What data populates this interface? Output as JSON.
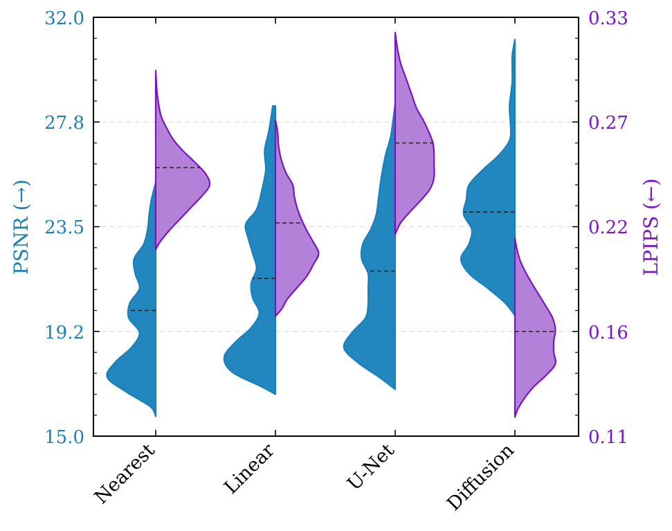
{
  "chart_data": {
    "type": "split-violin",
    "categories": [
      "Nearest",
      "Linear",
      "U-Net",
      "Diffusion"
    ],
    "left_axis": {
      "label": "PSNR (→)",
      "range": [
        15.0,
        32.0
      ],
      "ticks": [
        "15.0",
        "19.2",
        "23.5",
        "27.8",
        "32.0"
      ],
      "color": "#1b7fb8"
    },
    "right_axis": {
      "label": "LPIPS (←)",
      "range": [
        0.11,
        0.33
      ],
      "ticks": [
        "0.11",
        "0.16",
        "0.22",
        "0.27",
        "0.33"
      ],
      "color": "#7b14c0"
    },
    "grid": "dashed horizontal at inner ticks",
    "series": [
      {
        "name": "PSNR",
        "side": "left",
        "fill": "#2287bf",
        "stroke": "#1b7fb8",
        "medians": [
          20.1,
          21.4,
          21.7,
          24.1
        ],
        "violins": [
          {
            "min": 15.8,
            "max": 25.3,
            "profile": [
              [
                15.8,
                0
              ],
              [
                16.2,
                0.1
              ],
              [
                16.8,
                0.55
              ],
              [
                17.4,
                0.9
              ],
              [
                18.0,
                0.75
              ],
              [
                18.6,
                0.45
              ],
              [
                19.2,
                0.3
              ],
              [
                19.8,
                0.5
              ],
              [
                20.4,
                0.48
              ],
              [
                21.0,
                0.3
              ],
              [
                21.6,
                0.38
              ],
              [
                22.2,
                0.4
              ],
              [
                22.8,
                0.22
              ],
              [
                23.4,
                0.15
              ],
              [
                24.0,
                0.12
              ],
              [
                24.6,
                0.08
              ],
              [
                25.3,
                0
              ]
            ]
          },
          {
            "min": 16.7,
            "max": 28.4,
            "profile": [
              [
                16.7,
                0
              ],
              [
                17.0,
                0.25
              ],
              [
                17.6,
                0.8
              ],
              [
                18.2,
                0.95
              ],
              [
                18.8,
                0.75
              ],
              [
                19.4,
                0.45
              ],
              [
                20.0,
                0.3
              ],
              [
                20.6,
                0.42
              ],
              [
                21.2,
                0.45
              ],
              [
                21.8,
                0.35
              ],
              [
                22.4,
                0.42
              ],
              [
                23.0,
                0.5
              ],
              [
                23.6,
                0.55
              ],
              [
                24.2,
                0.35
              ],
              [
                25.0,
                0.25
              ],
              [
                25.8,
                0.18
              ],
              [
                26.6,
                0.2
              ],
              [
                27.4,
                0.12
              ],
              [
                28.4,
                0.05
              ]
            ]
          },
          {
            "min": 16.9,
            "max": 28.5,
            "profile": [
              [
                16.9,
                0
              ],
              [
                17.4,
                0.3
              ],
              [
                18.0,
                0.7
              ],
              [
                18.6,
                0.95
              ],
              [
                19.2,
                0.8
              ],
              [
                19.8,
                0.55
              ],
              [
                20.4,
                0.5
              ],
              [
                21.0,
                0.5
              ],
              [
                21.6,
                0.5
              ],
              [
                22.2,
                0.62
              ],
              [
                22.8,
                0.6
              ],
              [
                23.4,
                0.45
              ],
              [
                24.0,
                0.35
              ],
              [
                24.8,
                0.3
              ],
              [
                25.6,
                0.25
              ],
              [
                26.4,
                0.18
              ],
              [
                27.2,
                0.08
              ],
              [
                28.5,
                0
              ]
            ]
          },
          {
            "min": 19.9,
            "max": 31.1,
            "profile": [
              [
                19.9,
                0
              ],
              [
                20.4,
                0.18
              ],
              [
                21.0,
                0.5
              ],
              [
                21.6,
                0.85
              ],
              [
                22.2,
                1.0
              ],
              [
                22.8,
                0.85
              ],
              [
                23.4,
                0.8
              ],
              [
                24.0,
                0.95
              ],
              [
                24.6,
                0.9
              ],
              [
                25.2,
                0.85
              ],
              [
                25.8,
                0.6
              ],
              [
                26.4,
                0.3
              ],
              [
                27.0,
                0.1
              ],
              [
                27.6,
                0.08
              ],
              [
                28.4,
                0.1
              ],
              [
                29.4,
                0.05
              ],
              [
                30.4,
                0.05
              ],
              [
                31.1,
                0
              ]
            ]
          }
        ]
      },
      {
        "name": "LPIPS",
        "side": "right",
        "fill": "#b07ad6",
        "stroke": "#7b14c0",
        "medians": [
          0.251,
          0.222,
          0.264,
          0.165
        ],
        "violins": [
          {
            "min": 0.208,
            "max": 0.302,
            "profile": [
              [
                0.208,
                0
              ],
              [
                0.212,
                0.08
              ],
              [
                0.218,
                0.25
              ],
              [
                0.224,
                0.45
              ],
              [
                0.23,
                0.65
              ],
              [
                0.236,
                0.85
              ],
              [
                0.242,
                1.0
              ],
              [
                0.248,
                0.92
              ],
              [
                0.254,
                0.72
              ],
              [
                0.26,
                0.5
              ],
              [
                0.266,
                0.32
              ],
              [
                0.272,
                0.2
              ],
              [
                0.278,
                0.1
              ],
              [
                0.285,
                0.05
              ],
              [
                0.292,
                0.02
              ],
              [
                0.302,
                0
              ]
            ]
          },
          {
            "min": 0.173,
            "max": 0.276,
            "profile": [
              [
                0.173,
                0
              ],
              [
                0.177,
                0.12
              ],
              [
                0.182,
                0.22
              ],
              [
                0.188,
                0.4
              ],
              [
                0.194,
                0.58
              ],
              [
                0.2,
                0.7
              ],
              [
                0.206,
                0.8
              ],
              [
                0.212,
                0.7
              ],
              [
                0.218,
                0.58
              ],
              [
                0.224,
                0.48
              ],
              [
                0.23,
                0.4
              ],
              [
                0.236,
                0.35
              ],
              [
                0.242,
                0.32
              ],
              [
                0.248,
                0.2
              ],
              [
                0.254,
                0.12
              ],
              [
                0.262,
                0.06
              ],
              [
                0.27,
                0.04
              ],
              [
                0.276,
                0
              ]
            ]
          },
          {
            "min": 0.216,
            "max": 0.322,
            "profile": [
              [
                0.216,
                0
              ],
              [
                0.222,
                0.1
              ],
              [
                0.228,
                0.28
              ],
              [
                0.234,
                0.48
              ],
              [
                0.24,
                0.65
              ],
              [
                0.246,
                0.72
              ],
              [
                0.252,
                0.72
              ],
              [
                0.258,
                0.72
              ],
              [
                0.264,
                0.7
              ],
              [
                0.27,
                0.62
              ],
              [
                0.276,
                0.52
              ],
              [
                0.282,
                0.4
              ],
              [
                0.29,
                0.3
              ],
              [
                0.298,
                0.2
              ],
              [
                0.306,
                0.1
              ],
              [
                0.314,
                0.04
              ],
              [
                0.322,
                0
              ]
            ]
          },
          {
            "min": 0.12,
            "max": 0.214,
            "profile": [
              [
                0.12,
                0
              ],
              [
                0.124,
                0.05
              ],
              [
                0.13,
                0.18
              ],
              [
                0.136,
                0.35
              ],
              [
                0.142,
                0.58
              ],
              [
                0.148,
                0.75
              ],
              [
                0.154,
                0.72
              ],
              [
                0.16,
                0.72
              ],
              [
                0.166,
                0.75
              ],
              [
                0.172,
                0.7
              ],
              [
                0.178,
                0.58
              ],
              [
                0.184,
                0.45
              ],
              [
                0.19,
                0.32
              ],
              [
                0.196,
                0.2
              ],
              [
                0.202,
                0.1
              ],
              [
                0.208,
                0.04
              ],
              [
                0.214,
                0
              ]
            ]
          }
        ]
      }
    ]
  }
}
